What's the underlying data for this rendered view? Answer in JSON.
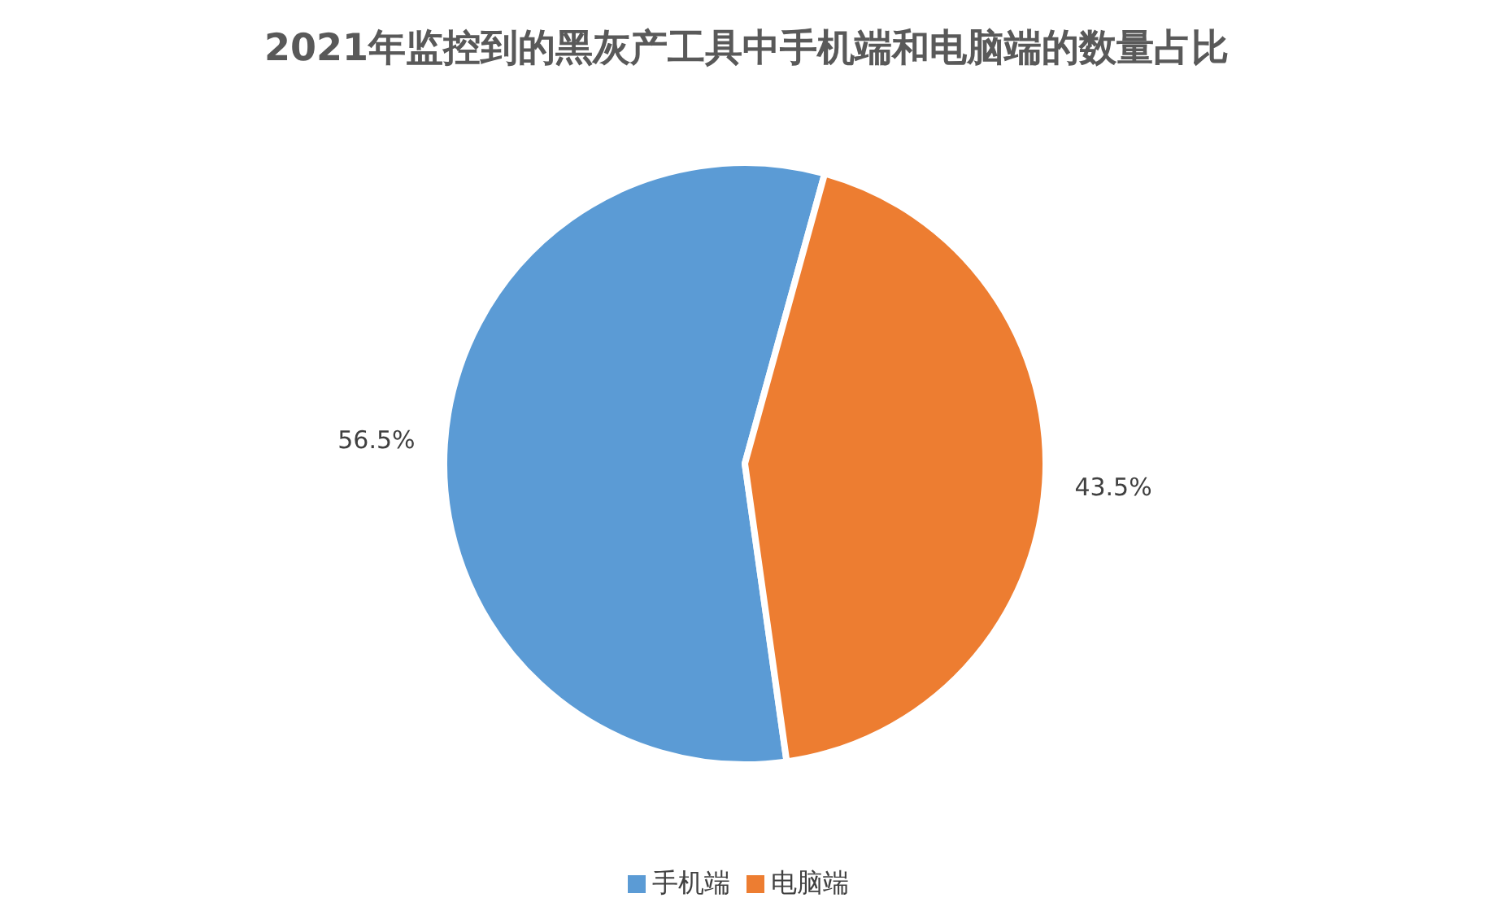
{
  "chart_data": {
    "type": "pie",
    "title": "2021年监控到的黑灰产工具中手机端和电脑端的数量占比",
    "categories": [
      "手机端",
      "电脑端"
    ],
    "values": [
      56.5,
      43.5
    ],
    "colors": [
      "#5b9bd5",
      "#ed7d31"
    ],
    "value_labels": [
      "56.5%",
      "43.5%"
    ],
    "legend": "bottom"
  }
}
